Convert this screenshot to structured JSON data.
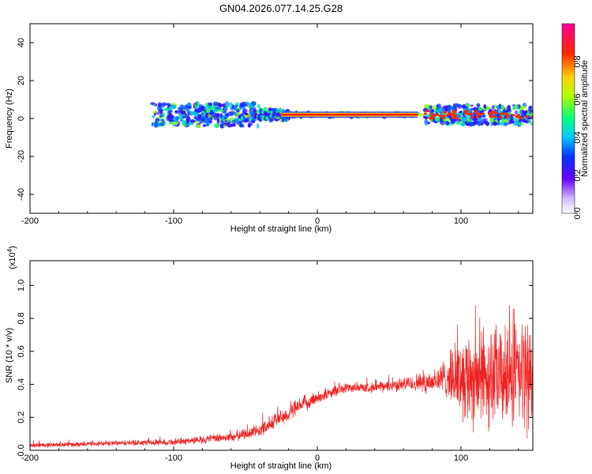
{
  "title": "GN04.2026.077.14.25.G28",
  "colors": {
    "snr_line": "#ee2222",
    "axis": "#000000",
    "spectral_low": "#e6d2ff",
    "spectral_mid": "#6a1ee8",
    "track_core": "#ff1a1a"
  },
  "chart_data": [
    {
      "id": "spectrogram",
      "type": "heatmap",
      "title": "GN04.2026.077.14.25.G28",
      "xlabel": "Height of straight line (km)",
      "ylabel": "Frequency (Hz)",
      "xlim": [
        -200,
        150
      ],
      "ylim": [
        -50,
        50
      ],
      "x_ticks": [
        -200,
        -100,
        0,
        100
      ],
      "x_tick_labels": [
        "-200",
        "-100",
        "0",
        "100"
      ],
      "y_ticks": [
        -40,
        -20,
        0,
        20,
        40
      ],
      "y_tick_labels": [
        "-40",
        "-20",
        "0",
        "20",
        "40"
      ],
      "colorbar": {
        "label": "Normalized spectral amplitude",
        "range": [
          0,
          1
        ],
        "ticks": [
          0.0,
          0.2,
          0.4,
          0.6,
          0.8
        ],
        "tick_labels": [
          "0.0",
          "0.2",
          "0.4",
          "0.6",
          "0.8"
        ]
      },
      "track": {
        "frequency_hz": 2,
        "strong_x_range": [
          -20,
          60
        ],
        "noise_limit_x": -40
      }
    },
    {
      "id": "snr",
      "type": "line",
      "xlabel": "Height of straight line (km)",
      "ylabel": "SNR (10 * v/v)",
      "yscale_label": "(x10",
      "yscale_exponent": "4",
      "xlim": [
        -200,
        150
      ],
      "ylim": [
        0,
        1.15
      ],
      "x_ticks": [
        -200,
        -100,
        0,
        100
      ],
      "x_tick_labels": [
        "-200",
        "-100",
        "0",
        "100"
      ],
      "y_ticks": [
        0,
        0.2,
        0.4,
        0.6,
        0.8,
        1.0
      ],
      "y_tick_labels": [
        "0.0",
        "0.2",
        "0.4",
        "0.6",
        "0.8",
        "1.0"
      ],
      "series": [
        {
          "name": "SNR",
          "envelope_x": [
            -200,
            -150,
            -100,
            -60,
            -40,
            -30,
            -20,
            -10,
            0,
            20,
            40,
            60,
            80,
            90,
            100,
            110,
            120,
            130,
            140,
            150
          ],
          "envelope_mean": [
            0.03,
            0.04,
            0.05,
            0.08,
            0.12,
            0.18,
            0.22,
            0.28,
            0.32,
            0.38,
            0.38,
            0.4,
            0.42,
            0.44,
            0.45,
            0.45,
            0.45,
            0.44,
            0.45,
            0.48
          ],
          "envelope_spread": [
            0.015,
            0.015,
            0.02,
            0.03,
            0.04,
            0.05,
            0.05,
            0.05,
            0.04,
            0.03,
            0.03,
            0.04,
            0.08,
            0.12,
            0.25,
            0.32,
            0.32,
            0.3,
            0.35,
            0.35
          ]
        }
      ]
    }
  ]
}
